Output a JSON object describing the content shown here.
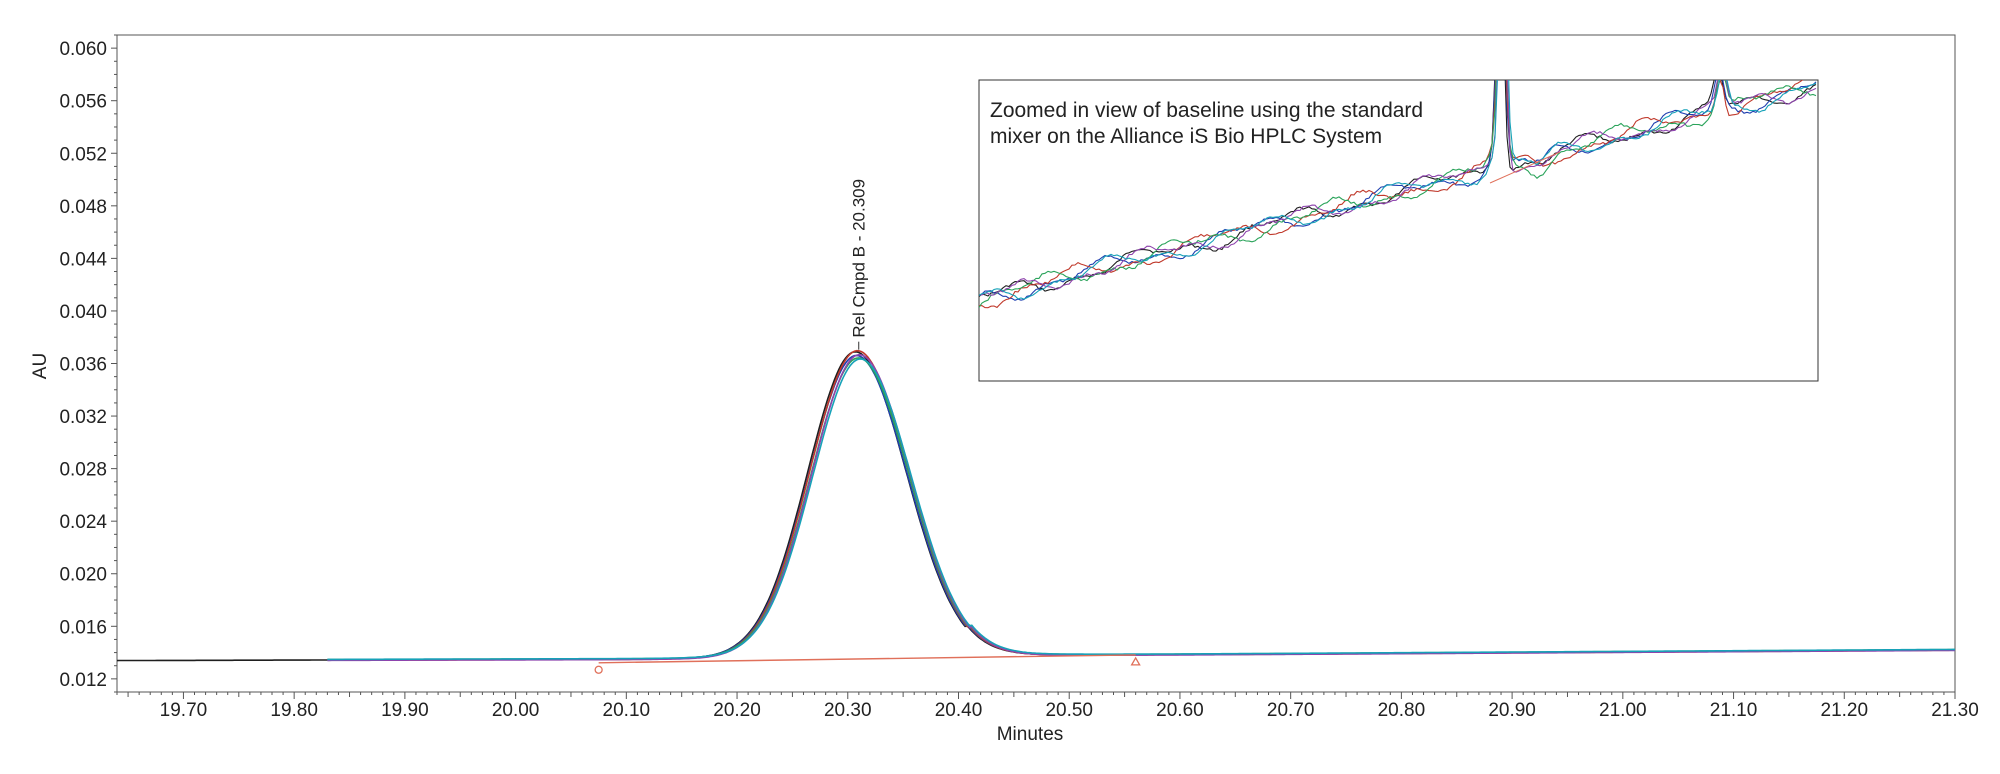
{
  "chart_data": {
    "type": "line",
    "title": "",
    "xlabel": "Minutes",
    "ylabel": "AU",
    "xlim": [
      19.64,
      21.3
    ],
    "ylim": [
      0.011,
      0.061
    ],
    "x_ticks": [
      19.7,
      19.8,
      19.9,
      20.0,
      20.1,
      20.2,
      20.3,
      20.4,
      20.5,
      20.6,
      20.7,
      20.8,
      20.9,
      21.0,
      21.1,
      21.2,
      21.3
    ],
    "x_tick_labels": [
      "19.70",
      "19.80",
      "19.90",
      "20.00",
      "20.10",
      "20.20",
      "20.30",
      "20.40",
      "20.50",
      "20.60",
      "20.70",
      "20.80",
      "20.90",
      "21.00",
      "21.10",
      "21.20",
      "21.30"
    ],
    "y_ticks": [
      0.012,
      0.016,
      0.02,
      0.024,
      0.028,
      0.032,
      0.036,
      0.04,
      0.044,
      0.048,
      0.052,
      0.056,
      0.06
    ],
    "y_tick_labels": [
      "0.012",
      "0.016",
      "0.020",
      "0.024",
      "0.028",
      "0.032",
      "0.036",
      "0.040",
      "0.044",
      "0.048",
      "0.052",
      "0.056",
      "0.060"
    ],
    "grid": false,
    "peak": {
      "label": "Rel Cmpd B - 20.309",
      "x": 20.309,
      "y": 0.0369,
      "baseline_start": {
        "x": 20.075,
        "y": 0.0133
      },
      "baseline_end": {
        "x": 20.56,
        "y": 0.0139
      }
    },
    "series": [
      {
        "color": "#1f1f1f",
        "peak_height": 0.0369,
        "x_start": 19.64
      },
      {
        "color": "#1f3fb0",
        "peak_height": 0.0366,
        "x_start": 19.83
      },
      {
        "color": "#c0392b",
        "peak_height": 0.037,
        "x_start": 19.83
      },
      {
        "color": "#2aa35a",
        "peak_height": 0.0364,
        "x_start": 19.83
      },
      {
        "color": "#8e44ad",
        "peak_height": 0.0367,
        "x_start": 19.83
      },
      {
        "color": "#17a2b8",
        "peak_height": 0.0363,
        "x_start": 19.83
      }
    ],
    "baseline_points": [
      [
        19.64,
        0.0134
      ],
      [
        20.1,
        0.0135
      ],
      [
        20.5,
        0.0138
      ],
      [
        21.3,
        0.0142
      ]
    ],
    "integration_baseline_color": "#e0705a",
    "inset": {
      "text_line1": "Zoomed  in view of baseline using the standard",
      "text_line2": "mixer on the Alliance iS Bio HPLC System"
    }
  }
}
